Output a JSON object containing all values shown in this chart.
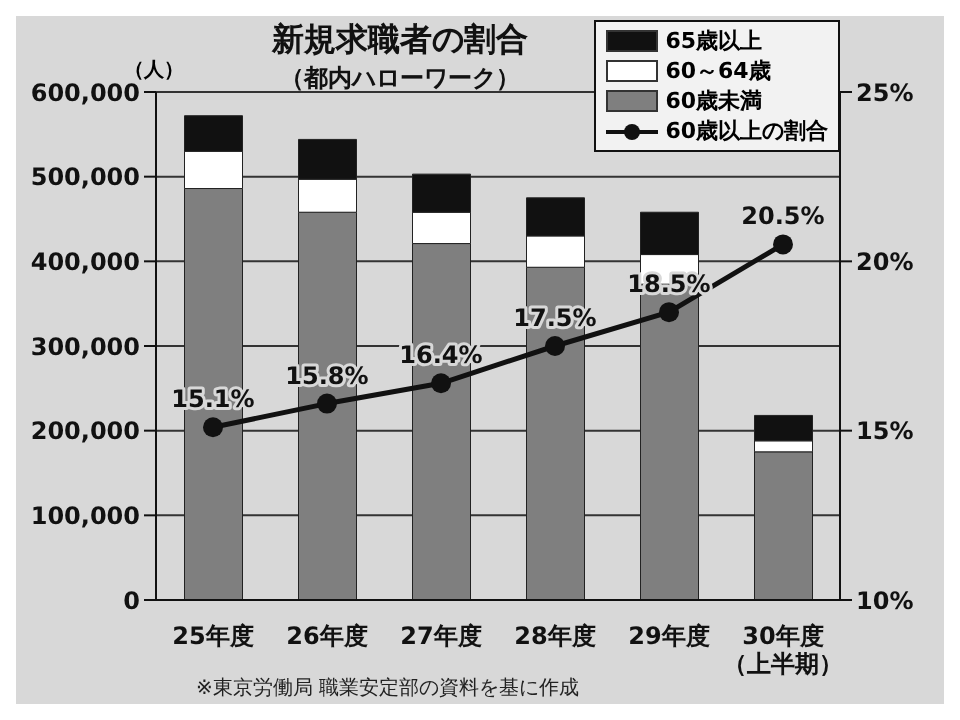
{
  "chart_data": {
    "type": "bar",
    "title": "新規求職者の割合",
    "subtitle": "（都内ハローワーク）",
    "ylabel": "（人）",
    "annotations": [
      "※東京労働局 職業安定部の資料を基に作成"
    ],
    "categories": [
      "25年度",
      "26年度",
      "27年度",
      "28年度",
      "29年度",
      "30年度（上半期）"
    ],
    "stacked": true,
    "series": [
      {
        "name": "60歳未満",
        "color": "#7f7f7f",
        "values": [
          486000,
          458000,
          421000,
          393000,
          373000,
          175000
        ]
      },
      {
        "name": "60～64歳",
        "color": "#ffffff",
        "values": [
          44000,
          39000,
          37000,
          37000,
          35000,
          13000
        ]
      },
      {
        "name": "65歳以上",
        "color": "#111111",
        "values": [
          42000,
          47000,
          45000,
          45000,
          50000,
          30000
        ]
      },
      {
        "name": "60歳以上の割合",
        "type": "line",
        "axis": "y2",
        "color": "#111111",
        "values": [
          15.1,
          15.8,
          16.4,
          17.5,
          18.5,
          20.5
        ],
        "value_labels": [
          "15.1%",
          "15.8%",
          "16.4%",
          "17.5%",
          "18.5%",
          "20.5%"
        ]
      }
    ],
    "ylim": [
      0,
      600000
    ],
    "yticks": [
      {
        "value": 0,
        "label": "0"
      },
      {
        "value": 100000,
        "label": "100,000"
      },
      {
        "value": 200000,
        "label": "200,000"
      },
      {
        "value": 300000,
        "label": "300,000"
      },
      {
        "value": 400000,
        "label": "400,000"
      },
      {
        "value": 500000,
        "label": "500,000"
      },
      {
        "value": 600000,
        "label": "600,000"
      }
    ],
    "y2lim": [
      10,
      25
    ],
    "y2ticks": [
      {
        "value": 10,
        "label": "10%"
      },
      {
        "value": 15,
        "label": "15%"
      },
      {
        "value": 20,
        "label": "20%"
      },
      {
        "value": 25,
        "label": "25%"
      }
    ],
    "grid": "y",
    "legend": "top right",
    "marker": "circle"
  }
}
